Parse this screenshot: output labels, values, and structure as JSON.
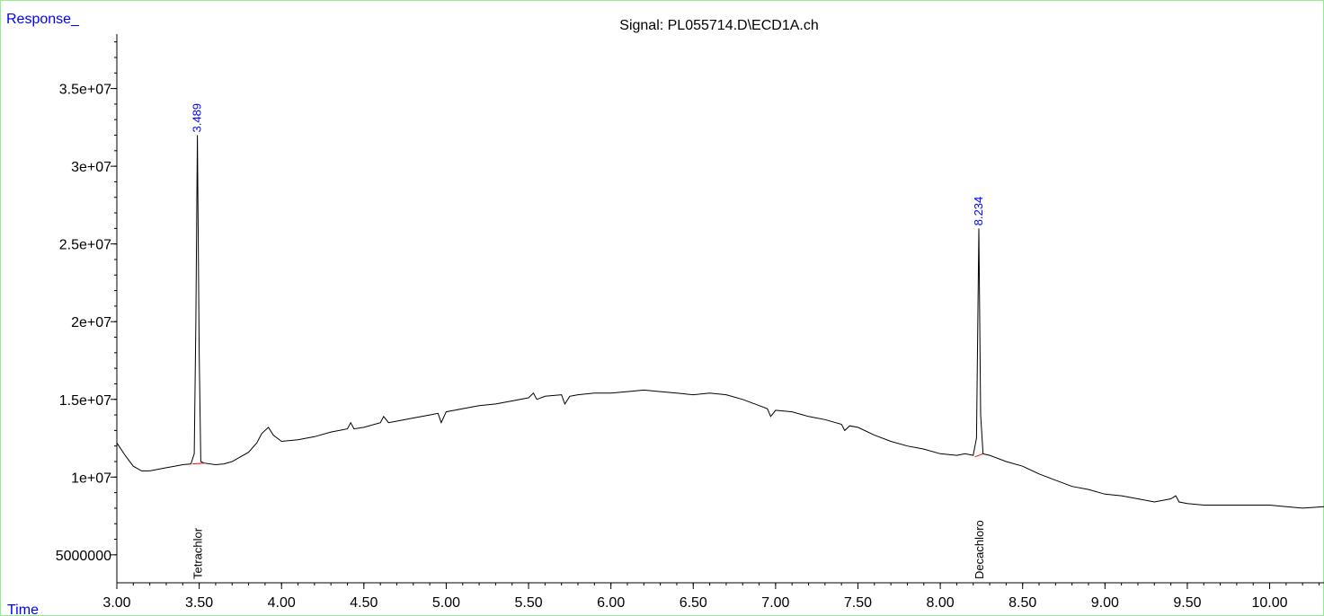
{
  "chart_data": {
    "type": "line",
    "title": "Signal: PL055714.D\\ECD1A.ch",
    "ylabel": "Response_",
    "xlabel": "Time",
    "xlim": [
      3.0,
      10.33
    ],
    "ylim": [
      3200000,
      38500000
    ],
    "x_ticks": [
      {
        "value": 3.0,
        "label": "3.00"
      },
      {
        "value": 3.5,
        "label": "3.50"
      },
      {
        "value": 4.0,
        "label": "4.00"
      },
      {
        "value": 4.5,
        "label": "4.50"
      },
      {
        "value": 5.0,
        "label": "5.00"
      },
      {
        "value": 5.5,
        "label": "5.50"
      },
      {
        "value": 6.0,
        "label": "6.00"
      },
      {
        "value": 6.5,
        "label": "6.50"
      },
      {
        "value": 7.0,
        "label": "7.00"
      },
      {
        "value": 7.5,
        "label": "7.50"
      },
      {
        "value": 8.0,
        "label": "8.00"
      },
      {
        "value": 8.5,
        "label": "8.50"
      },
      {
        "value": 9.0,
        "label": "9.00"
      },
      {
        "value": 9.5,
        "label": "9.50"
      },
      {
        "value": 10.0,
        "label": "10.00"
      }
    ],
    "y_ticks": [
      {
        "value": 5000000,
        "label": "5000000"
      },
      {
        "value": 10000000,
        "label": "1e+07"
      },
      {
        "value": 15000000,
        "label": "1.5e+07"
      },
      {
        "value": 20000000,
        "label": "2e+07"
      },
      {
        "value": 25000000,
        "label": "2.5e+07"
      },
      {
        "value": 30000000,
        "label": "3e+07"
      },
      {
        "value": 35000000,
        "label": "3.5e+07"
      }
    ],
    "series": [
      {
        "color": "#000000",
        "x": [
          3.0,
          3.05,
          3.1,
          3.15,
          3.2,
          3.25,
          3.3,
          3.35,
          3.4,
          3.45,
          3.47,
          3.48,
          3.489,
          3.5,
          3.51,
          3.53,
          3.6,
          3.65,
          3.7,
          3.75,
          3.8,
          3.85,
          3.88,
          3.92,
          3.95,
          4.0,
          4.1,
          4.2,
          4.3,
          4.4,
          4.42,
          4.44,
          4.5,
          4.6,
          4.62,
          4.65,
          4.7,
          4.8,
          4.9,
          4.95,
          4.97,
          5.0,
          5.05,
          5.1,
          5.2,
          5.3,
          5.4,
          5.5,
          5.53,
          5.55,
          5.6,
          5.7,
          5.72,
          5.75,
          5.8,
          5.9,
          6.0,
          6.1,
          6.2,
          6.3,
          6.4,
          6.5,
          6.6,
          6.7,
          6.8,
          6.9,
          6.95,
          6.97,
          7.0,
          7.1,
          7.2,
          7.3,
          7.4,
          7.42,
          7.45,
          7.5,
          7.6,
          7.7,
          7.8,
          7.9,
          8.0,
          8.1,
          8.15,
          8.2,
          8.22,
          8.234,
          8.245,
          8.26,
          8.3,
          8.4,
          8.5,
          8.6,
          8.7,
          8.8,
          8.9,
          9.0,
          9.1,
          9.2,
          9.3,
          9.4,
          9.43,
          9.45,
          9.5,
          9.6,
          9.7,
          9.8,
          9.9,
          10.0,
          10.1,
          10.2,
          10.33
        ],
        "y": [
          12200000,
          11400000,
          10700000,
          10400000,
          10400000,
          10500000,
          10600000,
          10700000,
          10800000,
          10850000,
          11500000,
          20000000,
          32000000,
          18000000,
          11000000,
          10900000,
          10800000,
          10850000,
          11000000,
          11300000,
          11600000,
          12200000,
          12800000,
          13200000,
          12700000,
          12300000,
          12400000,
          12600000,
          12900000,
          13100000,
          13500000,
          13100000,
          13200000,
          13500000,
          13900000,
          13500000,
          13600000,
          13800000,
          14000000,
          14100000,
          13500000,
          14200000,
          14300000,
          14400000,
          14600000,
          14700000,
          14900000,
          15100000,
          15400000,
          15000000,
          15200000,
          15300000,
          14700000,
          15200000,
          15300000,
          15400000,
          15400000,
          15500000,
          15600000,
          15500000,
          15400000,
          15300000,
          15400000,
          15300000,
          15000000,
          14600000,
          14400000,
          13900000,
          14300000,
          14200000,
          13900000,
          13700000,
          13400000,
          13000000,
          13300000,
          13200000,
          12700000,
          12300000,
          12000000,
          11800000,
          11500000,
          11400000,
          11500000,
          11400000,
          12500000,
          26000000,
          14000000,
          11500000,
          11400000,
          11000000,
          10700000,
          10200000,
          9800000,
          9400000,
          9200000,
          8900000,
          8800000,
          8600000,
          8400000,
          8600000,
          8800000,
          8400000,
          8300000,
          8200000,
          8200000,
          8200000,
          8200000,
          8200000,
          8100000,
          8000000,
          8100000
        ]
      }
    ],
    "peaks": [
      {
        "rt_label": "3.489",
        "x": 3.489,
        "y": 32000000,
        "compound": "Tetrachlor"
      },
      {
        "rt_label": "8.234",
        "x": 8.234,
        "y": 26000000,
        "compound": "Decachloro"
      }
    ],
    "baselines": [
      {
        "x": [
          3.46,
          3.53
        ],
        "y": [
          10850000,
          10900000
        ],
        "color": "#ff0000"
      },
      {
        "x": [
          8.21,
          8.26
        ],
        "y": [
          11300000,
          11500000
        ],
        "color": "#ff0000"
      }
    ],
    "colors": {
      "frame": "#90ee90",
      "axis_label": "#0000ff",
      "rt_label": "#0000ff",
      "trace": "#000000",
      "baseline": "#ff0000"
    },
    "grid": false,
    "legend": "none"
  }
}
